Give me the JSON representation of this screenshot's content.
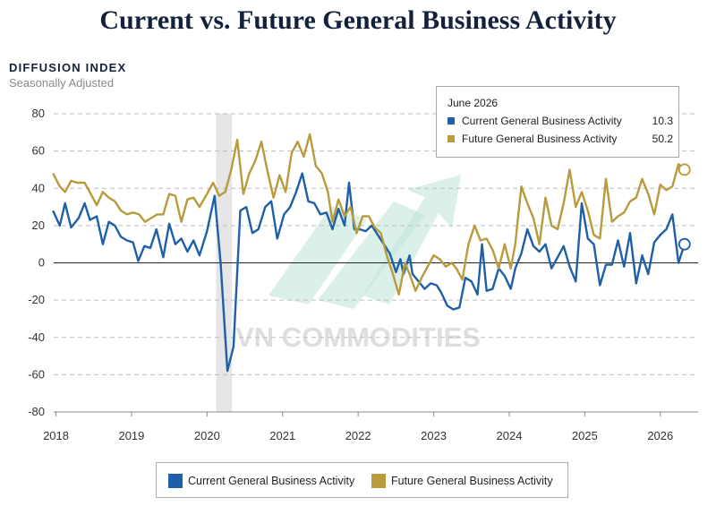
{
  "title": "Current vs. Future General Business Activity",
  "y_axis_title": "DIFFUSION INDEX",
  "y_axis_subtitle": "Seasonally Adjusted",
  "watermark": "VN COMMODITIES",
  "annotation": {
    "date": "June 2026",
    "rows": [
      {
        "name": "Current General Business Activity",
        "value": "10.3"
      },
      {
        "name": "Future General Business Activity",
        "value": "50.2"
      }
    ]
  },
  "legend": [
    {
      "name": "Current General Business Activity"
    },
    {
      "name": "Future General Business Activity"
    }
  ],
  "colors": {
    "current": "#1f5fa8",
    "future": "#b89b3c",
    "recession_band": "#e6e6e6",
    "grid": "#bdbdbd",
    "title": "#14213d"
  },
  "chart_data": {
    "type": "line",
    "x_unit": "year",
    "xlim": [
      2017.97,
      2026.5
    ],
    "ylim": [
      -80,
      80
    ],
    "y_ticks": [
      80,
      60,
      40,
      20,
      0,
      -20,
      -40,
      -60,
      -80
    ],
    "x_tick_labels": [
      "2018",
      "2019",
      "2020",
      "2021",
      "2022",
      "2023",
      "2024",
      "2025",
      "2026"
    ],
    "shaded_period": [
      2020.12,
      2020.33
    ],
    "grid": "horizontal dashed",
    "legend_position": "bottom",
    "series": [
      {
        "name": "Current General Business Activity",
        "color": "#1f5fa8",
        "points": [
          [
            2017.96,
            28
          ],
          [
            2018.05,
            20
          ],
          [
            2018.12,
            32
          ],
          [
            2018.2,
            19
          ],
          [
            2018.3,
            24
          ],
          [
            2018.38,
            32
          ],
          [
            2018.45,
            23
          ],
          [
            2018.54,
            25
          ],
          [
            2018.62,
            10
          ],
          [
            2018.7,
            22
          ],
          [
            2018.78,
            20
          ],
          [
            2018.86,
            14
          ],
          [
            2018.94,
            12
          ],
          [
            2019.02,
            11
          ],
          [
            2019.09,
            1
          ],
          [
            2019.17,
            9
          ],
          [
            2019.25,
            8
          ],
          [
            2019.33,
            18
          ],
          [
            2019.42,
            3
          ],
          [
            2019.5,
            21
          ],
          [
            2019.58,
            10
          ],
          [
            2019.66,
            13
          ],
          [
            2019.74,
            6
          ],
          [
            2019.82,
            12
          ],
          [
            2019.9,
            4
          ],
          [
            2020.0,
            17
          ],
          [
            2020.1,
            36
          ],
          [
            2020.18,
            0
          ],
          [
            2020.27,
            -58
          ],
          [
            2020.35,
            -45
          ],
          [
            2020.44,
            28
          ],
          [
            2020.52,
            30
          ],
          [
            2020.6,
            16
          ],
          [
            2020.68,
            18
          ],
          [
            2020.77,
            30
          ],
          [
            2020.85,
            33
          ],
          [
            2020.93,
            13
          ],
          [
            2021.02,
            26
          ],
          [
            2021.1,
            30
          ],
          [
            2021.18,
            38
          ],
          [
            2021.26,
            48
          ],
          [
            2021.34,
            33
          ],
          [
            2021.42,
            32
          ],
          [
            2021.5,
            26
          ],
          [
            2021.58,
            27
          ],
          [
            2021.66,
            18
          ],
          [
            2021.74,
            29
          ],
          [
            2021.82,
            20
          ],
          [
            2021.88,
            43
          ],
          [
            2021.95,
            18
          ],
          [
            2022.02,
            18
          ],
          [
            2022.1,
            17
          ],
          [
            2022.18,
            20
          ],
          [
            2022.26,
            15
          ],
          [
            2022.34,
            10
          ],
          [
            2022.42,
            5
          ],
          [
            2022.5,
            -5
          ],
          [
            2022.56,
            2
          ],
          [
            2022.6,
            -6
          ],
          [
            2022.68,
            4
          ],
          [
            2022.72,
            -6
          ],
          [
            2022.8,
            -10
          ],
          [
            2022.88,
            -14
          ],
          [
            2022.96,
            -11
          ],
          [
            2023.04,
            -12
          ],
          [
            2023.1,
            -16
          ],
          [
            2023.18,
            -23
          ],
          [
            2023.26,
            -25
          ],
          [
            2023.34,
            -24
          ],
          [
            2023.42,
            -8
          ],
          [
            2023.5,
            -10
          ],
          [
            2023.58,
            -17
          ],
          [
            2023.64,
            10
          ],
          [
            2023.7,
            -15
          ],
          [
            2023.78,
            -14
          ],
          [
            2023.86,
            -3
          ],
          [
            2023.94,
            -7
          ],
          [
            2024.02,
            -14
          ],
          [
            2024.08,
            -3
          ],
          [
            2024.16,
            5
          ],
          [
            2024.24,
            18
          ],
          [
            2024.32,
            9
          ],
          [
            2024.4,
            6
          ],
          [
            2024.48,
            10
          ],
          [
            2024.56,
            -3
          ],
          [
            2024.64,
            3
          ],
          [
            2024.72,
            9
          ],
          [
            2024.8,
            -2
          ],
          [
            2024.88,
            -10
          ],
          [
            2024.96,
            32
          ],
          [
            2025.04,
            13
          ],
          [
            2025.12,
            10
          ],
          [
            2025.2,
            -12
          ],
          [
            2025.28,
            -1
          ],
          [
            2025.36,
            -1
          ],
          [
            2025.44,
            12
          ],
          [
            2025.52,
            -2
          ],
          [
            2025.6,
            16
          ],
          [
            2025.68,
            -11
          ],
          [
            2025.76,
            4
          ],
          [
            2025.84,
            -6
          ],
          [
            2025.92,
            11
          ],
          [
            2026.0,
            15
          ],
          [
            2026.08,
            18
          ],
          [
            2026.16,
            26
          ],
          [
            2026.24,
            0
          ],
          [
            2026.32,
            10
          ]
        ]
      },
      {
        "name": "Future General Business Activity",
        "color": "#b89b3c",
        "points": [
          [
            2017.96,
            48
          ],
          [
            2018.05,
            41
          ],
          [
            2018.12,
            38
          ],
          [
            2018.2,
            44
          ],
          [
            2018.28,
            43
          ],
          [
            2018.38,
            43
          ],
          [
            2018.46,
            37
          ],
          [
            2018.54,
            31
          ],
          [
            2018.62,
            38
          ],
          [
            2018.7,
            35
          ],
          [
            2018.78,
            33
          ],
          [
            2018.86,
            28
          ],
          [
            2018.94,
            26
          ],
          [
            2019.02,
            27
          ],
          [
            2019.1,
            26
          ],
          [
            2019.18,
            22
          ],
          [
            2019.26,
            24
          ],
          [
            2019.34,
            26
          ],
          [
            2019.42,
            26
          ],
          [
            2019.5,
            37
          ],
          [
            2019.58,
            36
          ],
          [
            2019.66,
            22
          ],
          [
            2019.74,
            34
          ],
          [
            2019.82,
            35
          ],
          [
            2019.9,
            30
          ],
          [
            2020.0,
            37
          ],
          [
            2020.08,
            43
          ],
          [
            2020.16,
            36
          ],
          [
            2020.24,
            38
          ],
          [
            2020.32,
            50
          ],
          [
            2020.4,
            66
          ],
          [
            2020.48,
            37
          ],
          [
            2020.56,
            48
          ],
          [
            2020.64,
            55
          ],
          [
            2020.72,
            65
          ],
          [
            2020.8,
            49
          ],
          [
            2020.88,
            35
          ],
          [
            2020.96,
            47
          ],
          [
            2021.04,
            38
          ],
          [
            2021.12,
            59
          ],
          [
            2021.2,
            65
          ],
          [
            2021.28,
            57
          ],
          [
            2021.36,
            69
          ],
          [
            2021.44,
            52
          ],
          [
            2021.52,
            48
          ],
          [
            2021.6,
            38
          ],
          [
            2021.66,
            22
          ],
          [
            2021.74,
            34
          ],
          [
            2021.82,
            25
          ],
          [
            2021.9,
            30
          ],
          [
            2021.98,
            16
          ],
          [
            2022.06,
            25
          ],
          [
            2022.14,
            25
          ],
          [
            2022.22,
            19
          ],
          [
            2022.3,
            16
          ],
          [
            2022.38,
            4
          ],
          [
            2022.46,
            -6
          ],
          [
            2022.54,
            -17
          ],
          [
            2022.62,
            0
          ],
          [
            2022.68,
            -6
          ],
          [
            2022.76,
            -15
          ],
          [
            2022.84,
            -8
          ],
          [
            2022.92,
            -2
          ],
          [
            2023.0,
            4
          ],
          [
            2023.08,
            2
          ],
          [
            2023.16,
            -2
          ],
          [
            2023.24,
            0
          ],
          [
            2023.3,
            -3
          ],
          [
            2023.38,
            -9
          ],
          [
            2023.46,
            10
          ],
          [
            2023.54,
            20
          ],
          [
            2023.62,
            12
          ],
          [
            2023.7,
            13
          ],
          [
            2023.78,
            7
          ],
          [
            2023.86,
            -3
          ],
          [
            2023.94,
            10
          ],
          [
            2024.02,
            -3
          ],
          [
            2024.08,
            10
          ],
          [
            2024.16,
            41
          ],
          [
            2024.24,
            32
          ],
          [
            2024.32,
            24
          ],
          [
            2024.4,
            10
          ],
          [
            2024.48,
            35
          ],
          [
            2024.56,
            20
          ],
          [
            2024.64,
            18
          ],
          [
            2024.72,
            32
          ],
          [
            2024.8,
            50
          ],
          [
            2024.88,
            30
          ],
          [
            2024.96,
            38
          ],
          [
            2025.04,
            28
          ],
          [
            2025.12,
            15
          ],
          [
            2025.2,
            13
          ],
          [
            2025.28,
            45
          ],
          [
            2025.36,
            22
          ],
          [
            2025.44,
            25
          ],
          [
            2025.52,
            27
          ],
          [
            2025.6,
            33
          ],
          [
            2025.68,
            35
          ],
          [
            2025.76,
            45
          ],
          [
            2025.84,
            37
          ],
          [
            2025.92,
            26
          ],
          [
            2026.0,
            42
          ],
          [
            2026.08,
            39
          ],
          [
            2026.16,
            41
          ],
          [
            2026.24,
            53
          ],
          [
            2026.32,
            50
          ]
        ]
      }
    ]
  }
}
